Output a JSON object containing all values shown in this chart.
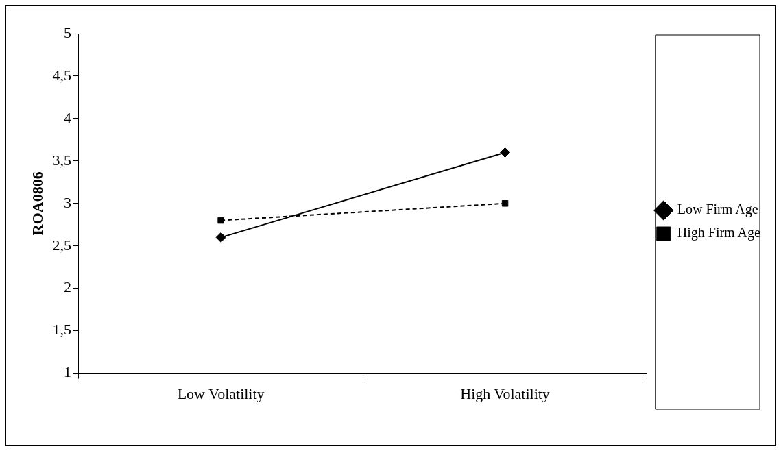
{
  "chart_data": {
    "type": "line",
    "ylabel": "ROA0806",
    "categories": [
      "Low Volatility",
      "High Volatility"
    ],
    "series": [
      {
        "name": "Low Firm Age",
        "color": "#000000",
        "values": [
          2.6,
          3.6
        ],
        "marker": "diamond",
        "line_style": "solid"
      },
      {
        "name": "High Firm Age",
        "color": "#000000",
        "values": [
          2.8,
          3.0
        ],
        "marker": "square",
        "line_style": "dashed"
      }
    ],
    "ylim": [
      1,
      5
    ],
    "yticks": [
      1,
      {
        "value": 1.5,
        "label": "1,5"
      },
      2,
      {
        "value": 2.5,
        "label": "2,5"
      },
      3,
      {
        "value": 3.5,
        "label": "3,5"
      },
      4,
      {
        "value": 4.5,
        "label": "4,5"
      },
      5
    ],
    "legend": "right"
  }
}
